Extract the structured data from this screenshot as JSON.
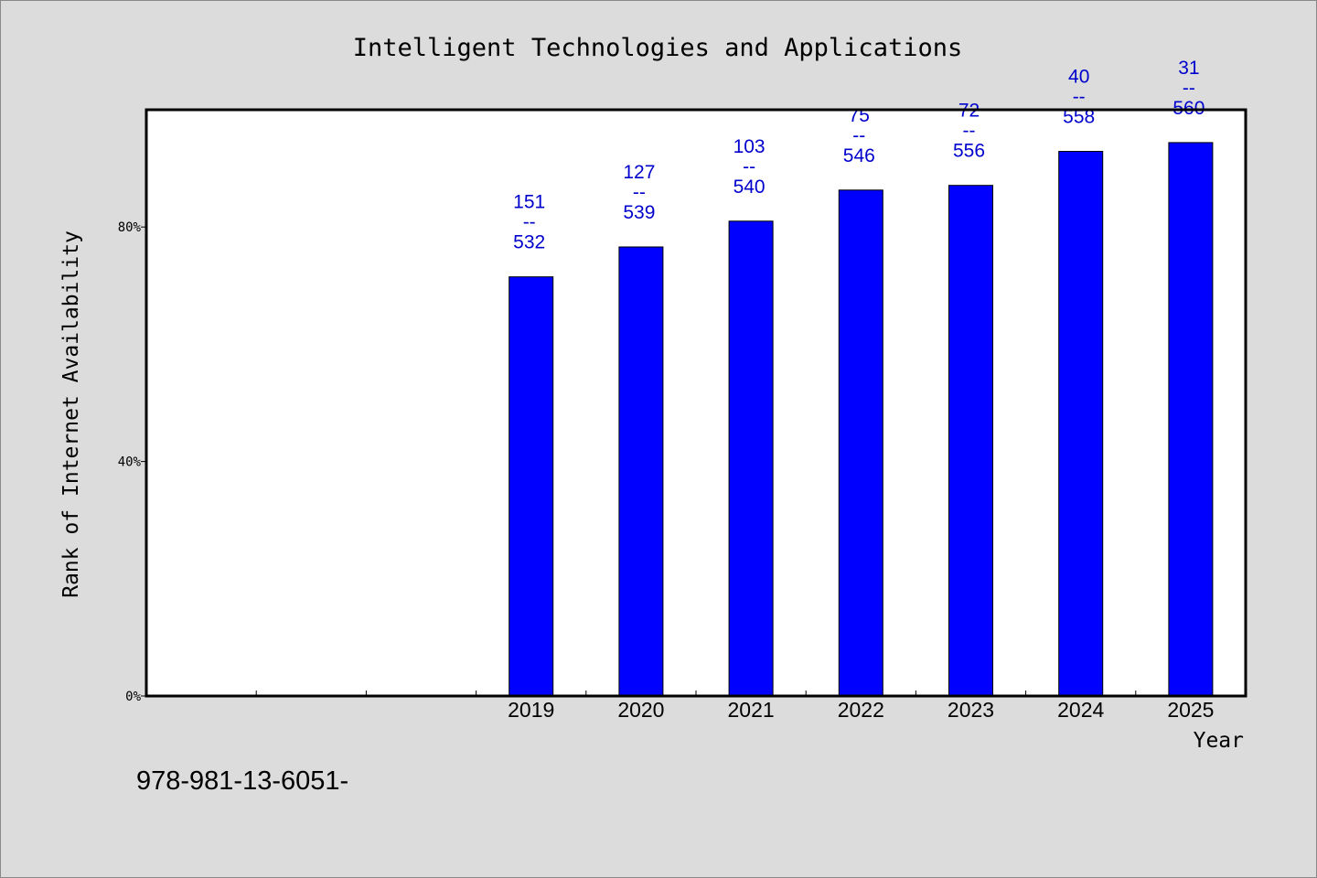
{
  "chart_data": {
    "type": "bar",
    "title": "Intelligent Technologies and Applications",
    "xlabel": "Year",
    "ylabel": "Rank of Internet Availability",
    "footer_text": "978-981-13-6051-",
    "categories": [
      "",
      "",
      "",
      "2019",
      "2020",
      "2021",
      "2022",
      "2023",
      "2024",
      "2025"
    ],
    "values": [
      null,
      null,
      null,
      71.5,
      76.6,
      81.0,
      86.3,
      87.1,
      92.9,
      94.4
    ],
    "bar_labels": [
      null,
      null,
      null,
      {
        "top": "151",
        "mid": "--",
        "bottom": "532"
      },
      {
        "top": "127",
        "mid": "--",
        "bottom": "539"
      },
      {
        "top": "103",
        "mid": "--",
        "bottom": "540"
      },
      {
        "top": "75",
        "mid": "--",
        "bottom": "546"
      },
      {
        "top": "72",
        "mid": "--",
        "bottom": "556"
      },
      {
        "top": "40",
        "mid": "--",
        "bottom": "558"
      },
      {
        "top": "31",
        "mid": "--",
        "bottom": "560"
      }
    ],
    "yticks": [
      0,
      40,
      80
    ],
    "ytick_labels": [
      "0%",
      "40%",
      "80%"
    ],
    "ylim": [
      0,
      100
    ],
    "grid": false,
    "bar_color": "#0000ff",
    "label_color": "#0000cd",
    "background_color": "#dcdcdc",
    "plot_background_color": "#ffffff"
  }
}
